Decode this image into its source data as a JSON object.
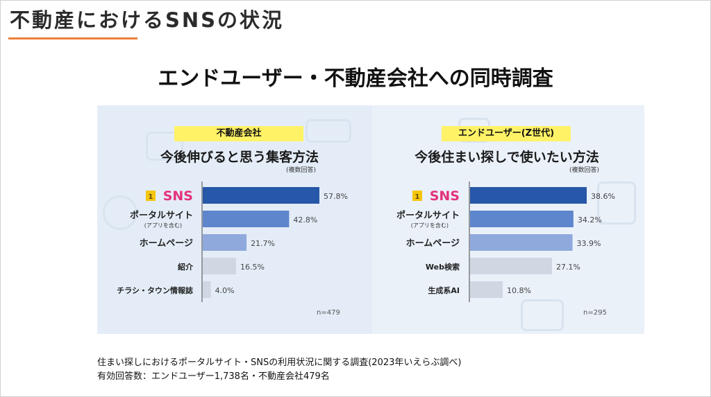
{
  "page": {
    "title": "不動産におけるSNSの状況",
    "heading": "エンドユーザー・不動産会社への同時調査"
  },
  "footer": {
    "line1": "住まい探しにおけるポータルサイト・SNSの利用状況に関する調査(2023年いえらぶ調べ)",
    "line2": "有効回答数：エンドユーザー1,738名・不動産会社479名"
  },
  "colors": {
    "accent": "#ef7f3a",
    "tag": "#fff266",
    "sns_label": "#e4317a",
    "bar_rank1": "#2757a8",
    "bar_rank2": "#5e86cc",
    "bar_rank3": "#8fa9dd",
    "bar_other": "#cfd7e2"
  },
  "chart_data": [
    {
      "type": "bar",
      "orientation": "horizontal",
      "tag": "不動産会社",
      "title": "今後伸びると思う集客方法",
      "note": "(複数回答)",
      "n_label": "n=479",
      "rank_badge": "1",
      "categories": [
        "SNS",
        "ポータルサイト",
        "ホームページ",
        "紹介",
        "チラシ・タウン情報誌"
      ],
      "category_notes": [
        "",
        "(アプリを含む)",
        "",
        "",
        ""
      ],
      "values": [
        57.8,
        42.8,
        21.7,
        16.5,
        4.0
      ],
      "value_labels": [
        "57.8%",
        "42.8%",
        "21.7%",
        "16.5%",
        "4.0%"
      ],
      "unit": "%"
    },
    {
      "type": "bar",
      "orientation": "horizontal",
      "tag": "エンドユーザー(Z世代)",
      "title": "今後住まい探しで使いたい方法",
      "note": "(複数回答)",
      "n_label": "n=295",
      "rank_badge": "1",
      "categories": [
        "SNS",
        "ポータルサイト",
        "ホームページ",
        "Web検索",
        "生成系AI"
      ],
      "category_notes": [
        "",
        "(アプリを含む)",
        "",
        "",
        ""
      ],
      "values": [
        38.6,
        34.2,
        33.9,
        27.1,
        10.8
      ],
      "value_labels": [
        "38.6%",
        "34.2%",
        "33.9%",
        "27.1%",
        "10.8%"
      ],
      "unit": "%"
    }
  ]
}
